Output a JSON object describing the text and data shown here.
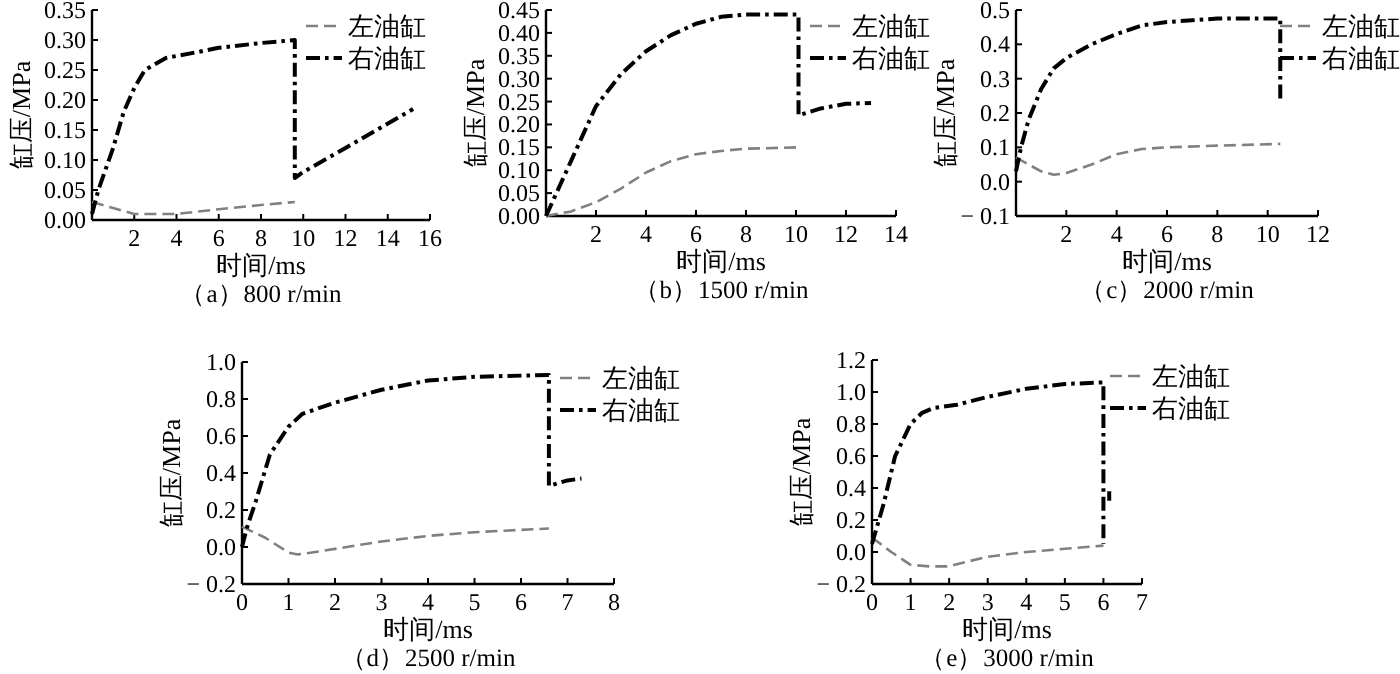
{
  "chart_data": [
    {
      "type": "line",
      "xlabel": "时间/ms",
      "ylabel": "缸压/MPa",
      "annotations": [
        "（a）800 r/min"
      ],
      "legend": "top right",
      "xlim": [
        0,
        16
      ],
      "ylim": [
        0,
        0.35
      ],
      "xticks": [
        2,
        4,
        6,
        8,
        10,
        12,
        14,
        16
      ],
      "yticks": [
        {
          "value": 0,
          "label": "0.00"
        },
        0.05,
        {
          "value": 0.1,
          "label": "0.10"
        },
        0.15,
        {
          "value": 0.2,
          "label": "0.20"
        },
        0.25,
        {
          "value": 0.3,
          "label": "0.30"
        },
        0.35
      ],
      "series": [
        {
          "name": "左油缸",
          "color": "#808080",
          "line_style": "dashed",
          "x": [
            0,
            1,
            2,
            4,
            6,
            8,
            9.6
          ],
          "values": [
            0.03,
            0.02,
            0.01,
            0.01,
            0.018,
            0.025,
            0.03
          ]
        },
        {
          "name": "右油缸",
          "color": "#000000",
          "line_style": "dashdot",
          "x": [
            0,
            0.3,
            1,
            1.5,
            2,
            2.5,
            3.5,
            5,
            6,
            8,
            9.6,
            9.6,
            10,
            12,
            15.2
          ],
          "values": [
            0.01,
            0.05,
            0.12,
            0.18,
            0.22,
            0.25,
            0.27,
            0.28,
            0.287,
            0.295,
            0.3,
            0.07,
            0.08,
            0.12,
            0.185
          ]
        }
      ]
    },
    {
      "type": "line",
      "xlabel": "时间/ms",
      "ylabel": "缸压/MPa",
      "annotations": [
        "（b）1500 r/min"
      ],
      "legend": "top right",
      "xlim": [
        0,
        14
      ],
      "ylim": [
        0,
        0.45
      ],
      "xticks": [
        2,
        4,
        6,
        8,
        10,
        12,
        14
      ],
      "yticks": [
        {
          "value": 0,
          "label": "0.00"
        },
        0.05,
        {
          "value": 0.1,
          "label": "0.10"
        },
        0.15,
        {
          "value": 0.2,
          "label": "0.20"
        },
        0.25,
        {
          "value": 0.3,
          "label": "0.30"
        },
        0.35,
        {
          "value": 0.4,
          "label": "0.40"
        },
        0.45
      ],
      "series": [
        {
          "name": "左油缸",
          "color": "#808080",
          "line_style": "dashed",
          "x": [
            0,
            1,
            2,
            3,
            4,
            5,
            6,
            7,
            8,
            10.1
          ],
          "values": [
            0,
            0.01,
            0.03,
            0.06,
            0.095,
            0.12,
            0.135,
            0.142,
            0.147,
            0.15
          ]
        },
        {
          "name": "右油缸",
          "color": "#000000",
          "line_style": "dashdot",
          "x": [
            0,
            1,
            2,
            3,
            4,
            5,
            6,
            7,
            8,
            10.1,
            10.1,
            11,
            12,
            13
          ],
          "values": [
            0,
            0.12,
            0.24,
            0.31,
            0.36,
            0.395,
            0.42,
            0.435,
            0.44,
            0.44,
            0.22,
            0.235,
            0.245,
            0.247
          ]
        }
      ]
    },
    {
      "type": "line",
      "xlabel": "时间/ms",
      "ylabel": "缸压/MPa",
      "annotations": [
        "（c）2000 r/min"
      ],
      "legend": "top right",
      "xlim": [
        0,
        12
      ],
      "ylim": [
        -0.1,
        0.5
      ],
      "xticks": [
        2,
        4,
        6,
        8,
        10,
        12
      ],
      "yticks": [
        {
          "value": -0.1,
          "label": "− 0.1"
        },
        {
          "value": 0,
          "label": "0.0"
        },
        0.1,
        0.2,
        0.3,
        0.4,
        0.5
      ],
      "series": [
        {
          "name": "左油缸",
          "color": "#808080",
          "line_style": "dashed",
          "x": [
            0,
            0.5,
            1,
            1.5,
            2,
            3,
            4,
            5,
            6,
            8,
            10.5
          ],
          "values": [
            0.07,
            0.05,
            0.03,
            0.02,
            0.025,
            0.05,
            0.08,
            0.095,
            0.1,
            0.105,
            0.11
          ]
        },
        {
          "name": "右油缸",
          "color": "#000000",
          "line_style": "dashdot",
          "x": [
            0,
            0.2,
            0.5,
            1,
            1.5,
            2,
            3,
            4,
            5,
            6,
            7,
            8,
            10.5,
            10.5
          ],
          "values": [
            0.03,
            0.1,
            0.18,
            0.27,
            0.33,
            0.36,
            0.4,
            0.43,
            0.455,
            0.465,
            0.47,
            0.475,
            0.475,
            0.24
          ]
        }
      ]
    },
    {
      "type": "line",
      "xlabel": "时间/ms",
      "ylabel": "缸压/MPa",
      "annotations": [
        "（d）2500 r/min"
      ],
      "legend": "top right",
      "xlim": [
        0,
        8
      ],
      "ylim": [
        -0.2,
        1.0
      ],
      "xticks": [
        0,
        1,
        2,
        3,
        4,
        5,
        6,
        7,
        8
      ],
      "yticks": [
        {
          "value": -0.2,
          "label": "− 0.2"
        },
        {
          "value": 0,
          "label": "0.0"
        },
        0.2,
        0.4,
        0.6,
        0.8,
        {
          "value": 1,
          "label": "1.0"
        }
      ],
      "series": [
        {
          "name": "左油缸",
          "color": "#808080",
          "line_style": "dashed",
          "x": [
            0,
            0.5,
            1,
            1.2,
            1.5,
            2,
            3,
            4,
            5,
            6.6
          ],
          "values": [
            0.11,
            0.05,
            -0.03,
            -0.04,
            -0.03,
            -0.01,
            0.03,
            0.06,
            0.08,
            0.1
          ]
        },
        {
          "name": "右油缸",
          "color": "#000000",
          "line_style": "dashdot",
          "x": [
            0,
            0.1,
            0.3,
            0.6,
            1,
            1.3,
            2,
            3,
            4,
            5,
            6.6,
            6.6,
            7,
            7.3
          ],
          "values": [
            0,
            0.1,
            0.25,
            0.5,
            0.65,
            0.72,
            0.78,
            0.85,
            0.9,
            0.92,
            0.93,
            0.33,
            0.36,
            0.37
          ]
        }
      ]
    },
    {
      "type": "line",
      "xlabel": "时间/ms",
      "ylabel": "缸压/MPa",
      "annotations": [
        "（e）3000 r/min"
      ],
      "legend": "top right",
      "xlim": [
        0,
        7
      ],
      "ylim": [
        -0.2,
        1.2
      ],
      "xticks": [
        0,
        1,
        2,
        3,
        4,
        5,
        6,
        7
      ],
      "yticks": [
        {
          "value": -0.2,
          "label": "− 0.2"
        },
        {
          "value": 0,
          "label": "0.0"
        },
        0.2,
        0.4,
        0.6,
        0.8,
        {
          "value": 1,
          "label": "1.0"
        },
        1.2
      ],
      "series": [
        {
          "name": "左油缸",
          "color": "#808080",
          "line_style": "dashed",
          "x": [
            0,
            0.5,
            1,
            1.5,
            2,
            2.3,
            3,
            4,
            5,
            6
          ],
          "values": [
            0.09,
            0,
            -0.08,
            -0.09,
            -0.09,
            -0.07,
            -0.03,
            0,
            0.02,
            0.04
          ]
        },
        {
          "name": "右油缸",
          "color": "#000000",
          "line_style": "dashdot",
          "x": [
            0,
            0.3,
            0.6,
            1,
            1.3,
            1.6,
            2.2,
            3,
            4,
            5,
            6,
            6,
            null,
            6.15,
            6.15
          ],
          "values": [
            0.05,
            0.3,
            0.6,
            0.8,
            0.87,
            0.9,
            0.92,
            0.97,
            1.02,
            1.05,
            1.06,
            0.05,
            null,
            0.38,
            0.32
          ]
        }
      ]
    }
  ]
}
